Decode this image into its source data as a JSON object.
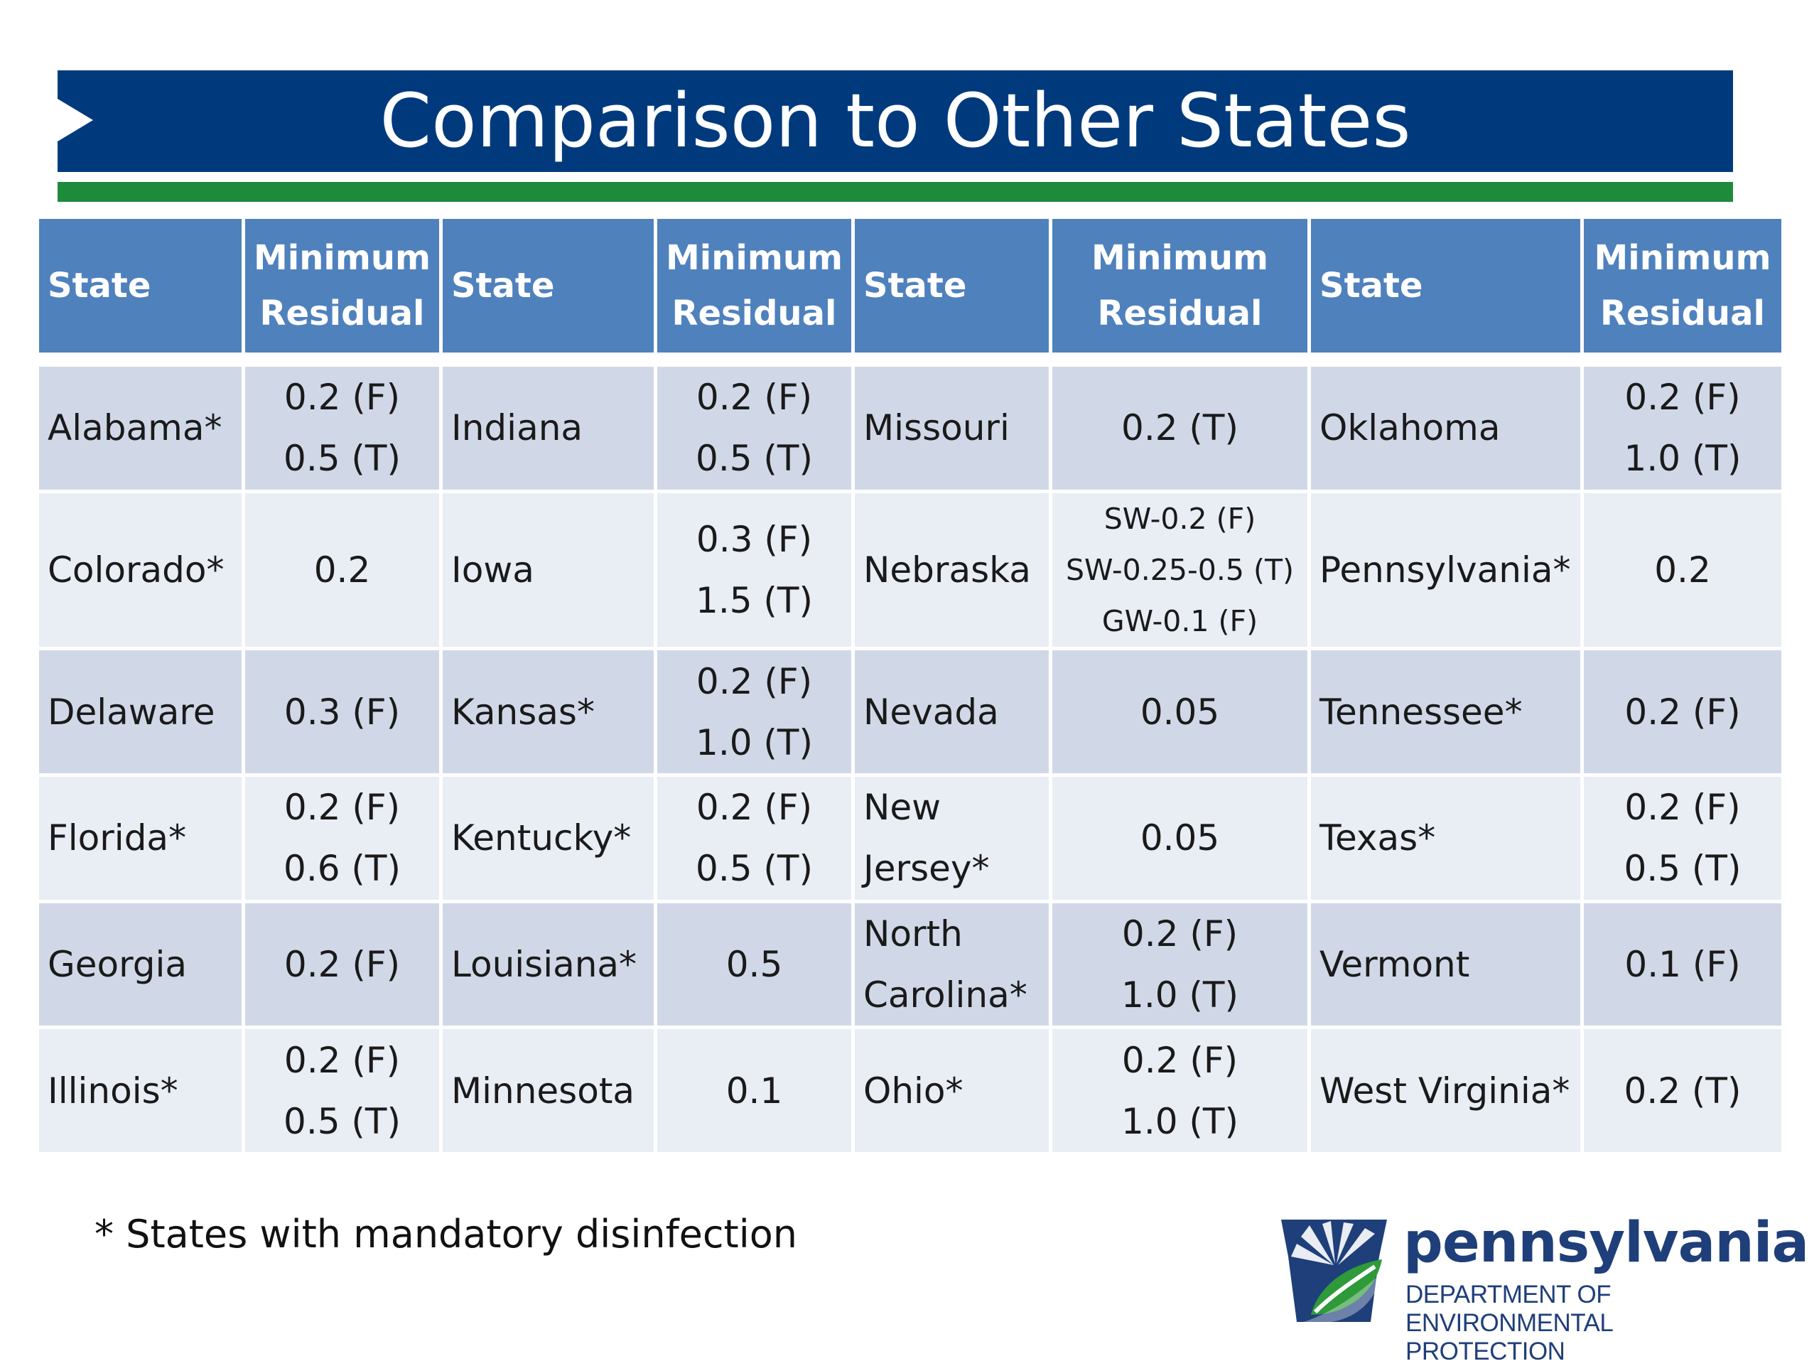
{
  "title": "Comparison to Other States",
  "table": {
    "headers": [
      {
        "state": "State",
        "residual_line1": "Minimum",
        "residual_line2": "Residual"
      },
      {
        "state": "State",
        "residual_line1": "Minimum",
        "residual_line2": "Residual"
      },
      {
        "state": "State",
        "residual_line1": "Minimum",
        "residual_line2": "Residual"
      },
      {
        "state": "State",
        "residual_line1": "Minimum",
        "residual_line2": "Residual"
      }
    ],
    "rows": [
      [
        {
          "state": [
            "Alabama*"
          ],
          "residual": [
            "0.2 (F)",
            "0.5 (T)"
          ]
        },
        {
          "state": [
            "Indiana"
          ],
          "residual": [
            "0.2 (F)",
            "0.5 (T)"
          ]
        },
        {
          "state": [
            "Missouri"
          ],
          "residual": [
            "0.2 (T)"
          ]
        },
        {
          "state": [
            "Oklahoma"
          ],
          "residual": [
            "0.2 (F)",
            "1.0 (T)"
          ]
        }
      ],
      [
        {
          "state": [
            "Colorado*"
          ],
          "residual": [
            "0.2"
          ]
        },
        {
          "state": [
            "Iowa"
          ],
          "residual": [
            "0.3 (F)",
            "1.5 (T)"
          ]
        },
        {
          "state": [
            "Nebraska"
          ],
          "residual": [
            "SW-0.2 (F)",
            "SW-0.25-0.5 (T)",
            "GW-0.1 (F)"
          ]
        },
        {
          "state": [
            "Pennsylvania*"
          ],
          "residual": [
            "0.2"
          ]
        }
      ],
      [
        {
          "state": [
            "Delaware"
          ],
          "residual": [
            "0.3 (F)"
          ]
        },
        {
          "state": [
            "Kansas*"
          ],
          "residual": [
            "0.2 (F)",
            "1.0 (T)"
          ]
        },
        {
          "state": [
            "Nevada"
          ],
          "residual": [
            "0.05"
          ]
        },
        {
          "state": [
            "Tennessee*"
          ],
          "residual": [
            "0.2 (F)"
          ]
        }
      ],
      [
        {
          "state": [
            "Florida*"
          ],
          "residual": [
            "0.2 (F)",
            "0.6 (T)"
          ]
        },
        {
          "state": [
            "Kentucky*"
          ],
          "residual": [
            "0.2 (F)",
            "0.5 (T)"
          ]
        },
        {
          "state": [
            "New",
            "Jersey*"
          ],
          "residual": [
            "0.05"
          ]
        },
        {
          "state": [
            "Texas*"
          ],
          "residual": [
            "0.2 (F)",
            "0.5 (T)"
          ]
        }
      ],
      [
        {
          "state": [
            "Georgia"
          ],
          "residual": [
            "0.2 (F)"
          ]
        },
        {
          "state": [
            "Louisiana*"
          ],
          "residual": [
            "0.5"
          ]
        },
        {
          "state": [
            "North",
            "Carolina*"
          ],
          "residual": [
            "0.2 (F)",
            "1.0 (T)"
          ]
        },
        {
          "state": [
            "Vermont"
          ],
          "residual": [
            "0.1 (F)"
          ]
        }
      ],
      [
        {
          "state": [
            "Illinois*"
          ],
          "residual": [
            "0.2 (F)",
            "0.5 (T)"
          ]
        },
        {
          "state": [
            "Minnesota"
          ],
          "residual": [
            "0.1"
          ]
        },
        {
          "state": [
            "Ohio*"
          ],
          "residual": [
            "0.2 (F)",
            "1.0 (T)"
          ]
        },
        {
          "state": [
            "West Virginia*"
          ],
          "residual": [
            "0.2 (T)"
          ]
        }
      ]
    ]
  },
  "footnote": "* States with mandatory disinfection",
  "logo": {
    "wordmark": "pennsylvania",
    "dept_line1": "DEPARTMENT OF ENVIRONMENTAL",
    "dept_line2": "PROTECTION",
    "colors": {
      "navy": "#1f3f7a",
      "green": "#2e9a3a"
    }
  },
  "colors": {
    "title_bar": "#003a7d",
    "accent_rule": "#1e8a3c",
    "header_cell": "#4f81bd",
    "row_odd": "#d0d8e8",
    "row_even": "#e9edf4"
  }
}
